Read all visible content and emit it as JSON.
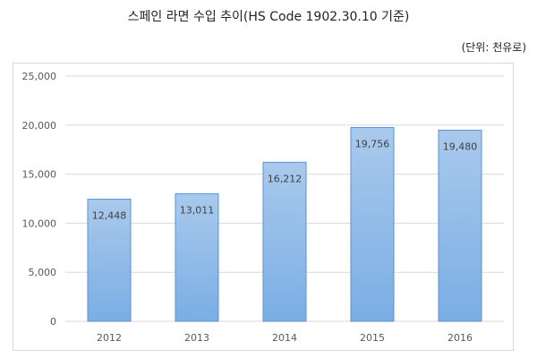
{
  "header": {
    "title": "스페인 라면 수입 추이(HS Code 1902.30.10 기준)",
    "unit": "(단위: 천유로)"
  },
  "colors": {
    "bar_top": "#a9c9ec",
    "bar_bottom": "#7aaee4",
    "bar_stroke": "#5b93d3",
    "grid": "#d9d9d9",
    "tick_text": "#595959",
    "label_text": "#404040"
  },
  "chart_data": {
    "type": "bar",
    "title": "스페인 라면 수입 추이(HS Code 1902.30.10 기준)",
    "xlabel": "",
    "ylabel": "",
    "unit": "(단위: 천유로)",
    "categories": [
      "2012",
      "2013",
      "2014",
      "2015",
      "2016"
    ],
    "values": [
      12448,
      13011,
      16212,
      19756,
      19480
    ],
    "value_labels": [
      "12,448",
      "13,011",
      "16,212",
      "19,756",
      "19,480"
    ],
    "ylim": [
      0,
      25000
    ],
    "yticks": [
      0,
      5000,
      10000,
      15000,
      20000,
      25000
    ],
    "ytick_labels": [
      "0",
      "5,000",
      "10,000",
      "15,000",
      "20,000",
      "25,000"
    ],
    "grid": true,
    "legend": "none"
  }
}
